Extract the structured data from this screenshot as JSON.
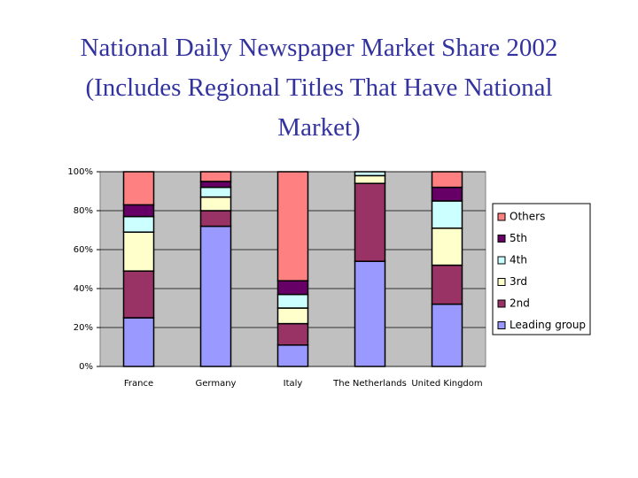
{
  "chart_data": {
    "type": "stacked-bar",
    "title": "National Daily Newspaper Market Share 2002 (Includes Regional Titles That Have National Market)",
    "categories": [
      "France",
      "Germany",
      "Italy",
      "The Netherlands",
      "United Kingdom"
    ],
    "series": [
      {
        "name": "Leading group",
        "color": "#9999ff",
        "values": [
          25,
          72,
          11,
          54,
          32
        ]
      },
      {
        "name": "2nd",
        "color": "#993366",
        "values": [
          24,
          8,
          11,
          40,
          20
        ]
      },
      {
        "name": "3rd",
        "color": "#ffffcc",
        "values": [
          20,
          7,
          8,
          4,
          19
        ]
      },
      {
        "name": "4th",
        "color": "#ccffff",
        "values": [
          8,
          5,
          7,
          2,
          14
        ]
      },
      {
        "name": "5th",
        "color": "#660066",
        "values": [
          6,
          3,
          7,
          0,
          7
        ]
      },
      {
        "name": "Others",
        "color": "#ff8080",
        "values": [
          17,
          5,
          56,
          0,
          8
        ]
      }
    ],
    "ylim": [
      0,
      100
    ],
    "yticks": [
      {
        "value": 0,
        "label": "0%"
      },
      {
        "value": 20,
        "label": "20%"
      },
      {
        "value": 40,
        "label": "40%"
      },
      {
        "value": 60,
        "label": "60%"
      },
      {
        "value": 80,
        "label": "80%"
      },
      {
        "value": 100,
        "label": "100%"
      }
    ],
    "grid": true,
    "legend": "right"
  }
}
